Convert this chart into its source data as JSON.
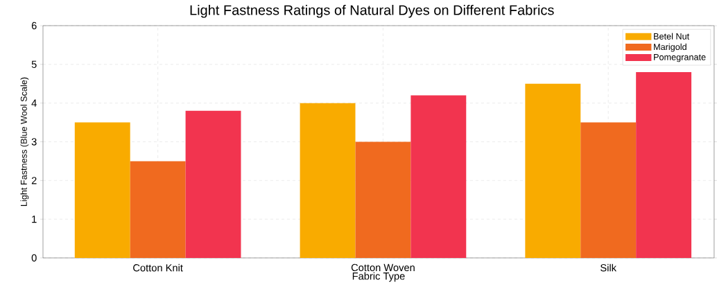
{
  "chart_data": {
    "type": "bar",
    "title": "Light Fastness Ratings of Natural Dyes on Different Fabrics",
    "xlabel": "Fabric Type",
    "ylabel": "Light Fastness (Blue Wool Scale)",
    "categories": [
      "Cotton Knit",
      "Cotton Woven",
      "Silk"
    ],
    "series": [
      {
        "name": "Betel Nut",
        "color": "#f9ab00",
        "values": [
          3.5,
          4.0,
          4.5
        ]
      },
      {
        "name": "Marigold",
        "color": "#f06a1f",
        "values": [
          2.5,
          3.0,
          3.5
        ]
      },
      {
        "name": "Pomegranate",
        "color": "#f2344f",
        "values": [
          3.8,
          4.2,
          4.8
        ]
      }
    ],
    "ylim": [
      0,
      6
    ],
    "yticks": [
      0,
      1,
      2,
      3,
      4,
      5,
      6
    ],
    "grid": true,
    "legend": "top right"
  }
}
